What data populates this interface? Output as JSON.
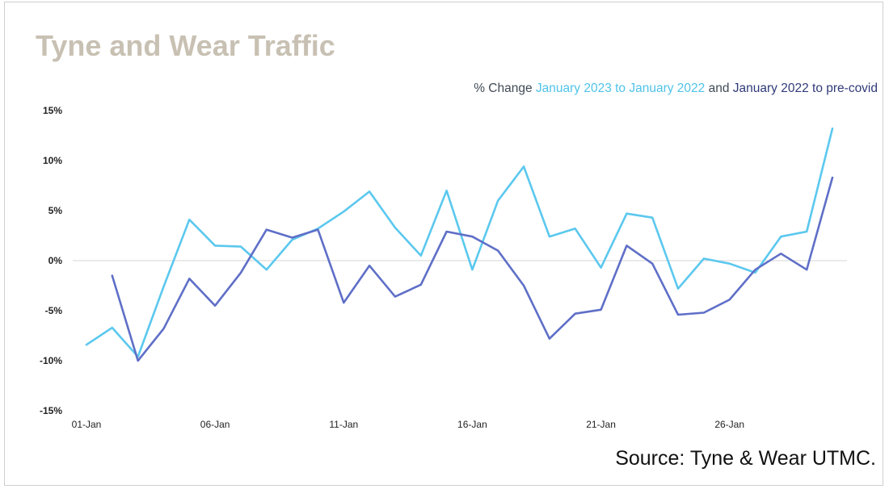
{
  "title": "Tyne and Wear Traffic",
  "subtitle": {
    "prefix": "% Change ",
    "series1_label": "January 2023 to January 2022",
    "joiner": " and ",
    "series2_label": "January 2022 to pre-covid"
  },
  "source": "Source: Tyne & Wear UTMC.",
  "colors": {
    "series1": "#5bc8ee",
    "series2": "#5f6fc7",
    "title": "#c8c1b3",
    "zero_line": "#d6d6d6"
  },
  "chart_data": {
    "type": "line",
    "title": "Tyne and Wear Traffic",
    "xlabel": "",
    "ylabel": "",
    "ylim": [
      -15,
      15
    ],
    "yticks": [
      15,
      10,
      5,
      0,
      -5,
      -10,
      -15
    ],
    "ytick_labels": [
      "15%",
      "10%",
      "5%",
      "0%",
      "-5%",
      "-10%",
      "-15%"
    ],
    "x": [
      1,
      2,
      3,
      4,
      5,
      6,
      7,
      8,
      9,
      10,
      11,
      12,
      13,
      14,
      15,
      16,
      17,
      18,
      19,
      20,
      21,
      22,
      23,
      24,
      25,
      26,
      27,
      28,
      29,
      30
    ],
    "xticks": [
      1,
      6,
      11,
      16,
      21,
      26
    ],
    "xtick_labels": [
      "01-Jan",
      "06-Jan",
      "11-Jan",
      "16-Jan",
      "21-Jan",
      "26-Jan"
    ],
    "grid": false,
    "series": [
      {
        "name": "January 2023 to January 2022",
        "color": "#5bc8ee",
        "values": [
          -8.4,
          -6.7,
          -9.6,
          -2.6,
          4.1,
          1.5,
          1.4,
          -0.9,
          2.1,
          3.2,
          4.9,
          6.9,
          3.3,
          0.5,
          7.0,
          -0.9,
          6.0,
          9.4,
          2.4,
          3.2,
          -0.7,
          4.7,
          4.3,
          -2.8,
          0.2,
          -0.3,
          -1.2,
          2.4,
          2.9,
          13.2
        ]
      },
      {
        "name": "January 2022 to pre-covid",
        "color": "#5f6fc7",
        "values": [
          null,
          -1.5,
          -10.0,
          -6.8,
          -1.8,
          -4.5,
          -1.2,
          3.1,
          2.3,
          3.1,
          -4.2,
          -0.5,
          -3.6,
          -2.4,
          2.9,
          2.4,
          1.0,
          -2.5,
          -7.8,
          -5.3,
          -4.9,
          1.5,
          -0.3,
          -5.4,
          -5.2,
          -3.9,
          -0.9,
          0.7,
          -0.9,
          8.3
        ]
      }
    ]
  }
}
